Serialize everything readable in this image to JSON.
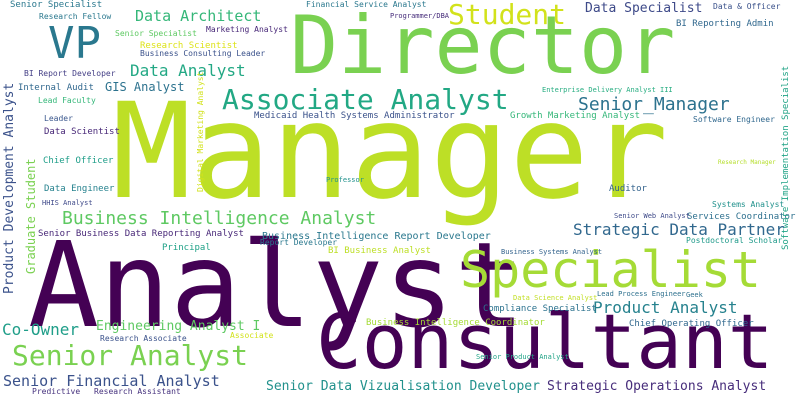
{
  "words": [
    {
      "text": "Manager",
      "color": "#bddf26"
    },
    {
      "text": "Analyst",
      "color": "#440154"
    },
    {
      "text": "Director",
      "color": "#7ad151"
    },
    {
      "text": "Consultant",
      "color": "#440154"
    },
    {
      "text": "Specialist",
      "color": "#a5db36"
    },
    {
      "text": "VP",
      "color": "#2a788e"
    },
    {
      "text": "Senior Analyst",
      "color": "#7ad151"
    },
    {
      "text": "Associate Analyst",
      "color": "#22a884"
    },
    {
      "text": "Student",
      "color": "#d2e21b"
    },
    {
      "text": "Senior_Manager",
      "color": "#2c728e"
    },
    {
      "text": "Business Intelligence Analyst",
      "color": "#5ec962"
    },
    {
      "text": "Strategic Data Partner",
      "color": "#31688e"
    },
    {
      "text": "Product Analyst",
      "color": "#26828e"
    },
    {
      "text": "Data Architect",
      "color": "#35b779"
    },
    {
      "text": "Data Analyst",
      "color": "#22a884"
    },
    {
      "text": "Senior Financial Analyst",
      "color": "#3b528b"
    },
    {
      "text": "Strategic Operations Analyst",
      "color": "#472d7b"
    },
    {
      "text": "Senior Data Vizualisation Developer",
      "color": "#21918c"
    },
    {
      "text": "Co-Owner",
      "color": "#1f9e89"
    },
    {
      "text": "Engineering Analyst I",
      "color": "#5ec962"
    },
    {
      "text": "Data Specialist",
      "color": "#3e4a89"
    },
    {
      "text": "GIS Analyst",
      "color": "#2c728e"
    },
    {
      "text": "Business Intelligence Report Developer",
      "color": "#2a788e"
    },
    {
      "text": "Senior Business Data Reporting Analyst",
      "color": "#482878"
    },
    {
      "text": "Principal",
      "color": "#1fa187"
    },
    {
      "text": "Report Developer",
      "color": "#2a788e"
    },
    {
      "text": "BI Business Analyst",
      "color": "#bddf26"
    },
    {
      "text": "Medicaid Health Systems Administrator",
      "color": "#3b528b"
    },
    {
      "text": "Growth Marketing Analyst",
      "color": "#35b779"
    },
    {
      "text": "Enterprise Delivery Analyst III",
      "color": "#27ad81"
    },
    {
      "text": "Compliance Specialist",
      "color": "#2c728e"
    },
    {
      "text": "Business Intelligence Coordinator",
      "color": "#a5db36"
    },
    {
      "text": "Chief Operating Officer",
      "color": "#31688e"
    },
    {
      "text": "Research Associate",
      "color": "#3b528b"
    },
    {
      "text": "Associate",
      "color": "#d2e21b"
    },
    {
      "text": "Predictive",
      "color": "#46327e"
    },
    {
      "text": "Research Assistant",
      "color": "#46327e"
    },
    {
      "text": "Senior Product Analyst",
      "color": "#20a386"
    },
    {
      "text": "Data Science Analyst",
      "color": "#c2df23"
    },
    {
      "text": "Lead Process Engineer",
      "color": "#2d708e"
    },
    {
      "text": "Geek",
      "color": "#2d708e"
    },
    {
      "text": "Business Systems Analyst",
      "color": "#33638d"
    },
    {
      "text": "Postdoctoral Scholar",
      "color": "#1f9a8a"
    },
    {
      "text": "Services Coordinator",
      "color": "#2d708e"
    },
    {
      "text": "Senior Web Analyst",
      "color": "#3e4a89"
    },
    {
      "text": "Systems Analyst",
      "color": "#21918c"
    },
    {
      "text": "Auditor",
      "color": "#33638d"
    },
    {
      "text": "Research Manager",
      "color": "#b5de2b"
    },
    {
      "text": "Professor",
      "color": "#21918c"
    },
    {
      "text": "Data Engineer",
      "color": "#26828e"
    },
    {
      "text": "HHIS Analyst",
      "color": "#3e4989"
    },
    {
      "text": "Chief  Officer",
      "color": "#1f9e89"
    },
    {
      "text": "Data Scientist",
      "color": "#482878"
    },
    {
      "text": "Leader",
      "color": "#39568c"
    },
    {
      "text": "Lead Faculty",
      "color": "#35b779"
    },
    {
      "text": "Internal Audit",
      "color": "#31688e"
    },
    {
      "text": "BI Report Developer",
      "color": "#433e85"
    },
    {
      "text": "Senior  Specialist",
      "color": "#2a788e"
    },
    {
      "text": "Research Fellow",
      "color": "#2a788e"
    },
    {
      "text": "Senior Specialist",
      "color": "#5ec962"
    },
    {
      "text": "Research Scientist",
      "color": "#dde318"
    },
    {
      "text": "Business Consulting Leader",
      "color": "#3b528b"
    },
    {
      "text": "Marketing Analyst",
      "color": "#482878"
    },
    {
      "text": "Financial Service Analyst",
      "color": "#2a788e"
    },
    {
      "text": "Programmer/DBA",
      "color": "#472d7b"
    },
    {
      "text": "Data &  Officer",
      "color": "#3b528b"
    },
    {
      "text": "BI Reporting Admin",
      "color": "#31688e"
    },
    {
      "text": "Software Engineer",
      "color": "#31688e"
    },
    {
      "text": "Product Development Analyst",
      "color": "#3b528b"
    },
    {
      "text": "Graduate Student",
      "color": "#7ad151"
    },
    {
      "text": "Digital Marketing Analyst",
      "color": "#d2e21b"
    },
    {
      "text": "Software Implementation Specialist",
      "color": "#20a386"
    }
  ]
}
